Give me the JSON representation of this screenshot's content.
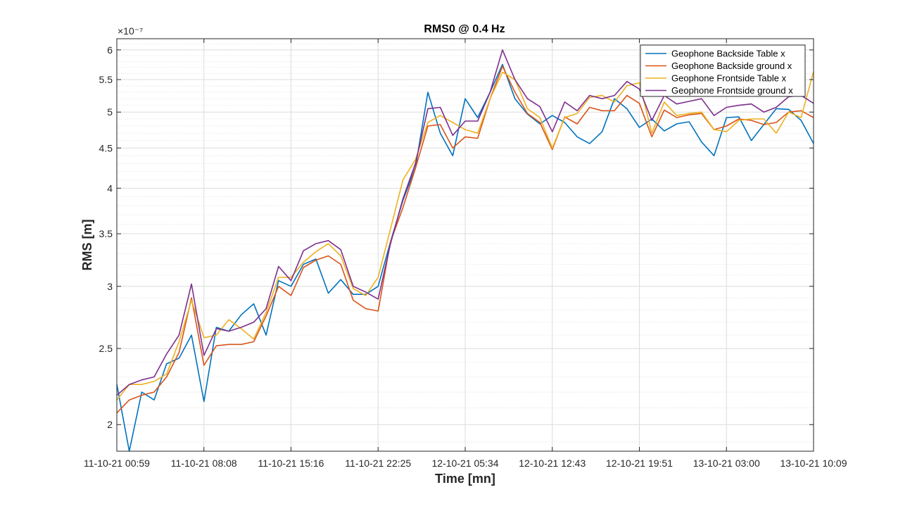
{
  "chart_data": {
    "type": "line",
    "title": "RMS0 @ 0.4 Hz",
    "xlabel": "Time [mn]",
    "ylabel": "RMS [m]",
    "y_exponent_label": "×10⁻⁷",
    "y_scale": "log",
    "ylim": [
      1.85,
      6.2
    ],
    "xlim": [
      0,
      56
    ],
    "grid": true,
    "minor_grid": true,
    "legend_position": "top-right",
    "x_tick_positions": [
      0,
      7,
      14,
      21,
      28,
      35,
      42,
      49,
      56
    ],
    "x_tick_labels": [
      "11-10-21 00:59",
      "11-10-21 08:08",
      "11-10-21 15:16",
      "11-10-21 22:25",
      "12-10-21 05:34",
      "12-10-21 12:43",
      "12-10-21 19:51",
      "13-10-21 03:00",
      "13-10-21 10:09"
    ],
    "y_ticks": [
      2,
      2.5,
      3,
      3.5,
      4,
      4.5,
      5,
      5.5,
      6
    ],
    "y_tick_labels": [
      "2",
      "2.5",
      "3",
      "3.5",
      "4",
      "4.5",
      "5",
      "5.5",
      "6"
    ],
    "y_minor_ticks": [
      1.9,
      2.1,
      2.2,
      2.3,
      2.4,
      2.6,
      2.7,
      2.8,
      2.9,
      3.1,
      3.2,
      3.3,
      3.4,
      3.6,
      3.7,
      3.8,
      3.9,
      4.1,
      4.2,
      4.3,
      4.4,
      4.6,
      4.7,
      4.8,
      4.9,
      5.1,
      5.2,
      5.3,
      5.4,
      5.6,
      5.7,
      5.8,
      5.9,
      6.1
    ],
    "x": [
      0,
      1,
      2,
      3,
      4,
      5,
      6,
      7,
      8,
      9,
      10,
      11,
      12,
      13,
      14,
      15,
      16,
      17,
      18,
      19,
      20,
      21,
      22,
      23,
      24,
      25,
      26,
      27,
      28,
      29,
      30,
      31,
      32,
      33,
      34,
      35,
      36,
      37,
      38,
      39,
      40,
      41,
      42,
      43,
      44,
      45,
      46,
      47,
      48,
      49,
      50,
      51,
      52,
      53,
      54,
      55,
      56
    ],
    "series": [
      {
        "name": "Geophone Backside Table x",
        "color": "#0072BD",
        "values": [
          2.25,
          1.83,
          2.2,
          2.15,
          2.39,
          2.43,
          2.6,
          2.14,
          2.66,
          2.63,
          2.76,
          2.85,
          2.6,
          3.05,
          3.0,
          3.2,
          3.25,
          2.94,
          3.06,
          2.93,
          2.93,
          3.0,
          3.42,
          3.86,
          4.25,
          5.3,
          4.7,
          4.4,
          5.2,
          4.92,
          5.3,
          5.75,
          5.2,
          4.97,
          4.83,
          4.95,
          4.85,
          4.65,
          4.56,
          4.72,
          5.2,
          5.05,
          4.78,
          4.9,
          4.73,
          4.83,
          4.86,
          4.58,
          4.4,
          4.92,
          4.93,
          4.6,
          4.82,
          5.05,
          5.04,
          4.88,
          4.56
        ]
      },
      {
        "name": "Geophone Backside ground x",
        "color": "#D95319",
        "values": [
          2.07,
          2.15,
          2.18,
          2.2,
          2.3,
          2.47,
          2.9,
          2.38,
          2.52,
          2.53,
          2.53,
          2.55,
          2.75,
          3.0,
          2.92,
          3.17,
          3.24,
          3.28,
          3.2,
          2.88,
          2.81,
          2.79,
          3.42,
          3.78,
          4.24,
          4.8,
          4.82,
          4.5,
          4.65,
          4.63,
          5.2,
          5.72,
          5.3,
          4.98,
          4.85,
          4.48,
          4.93,
          4.83,
          5.07,
          5.02,
          5.02,
          5.25,
          5.13,
          4.65,
          5.03,
          4.92,
          4.96,
          4.98,
          4.75,
          4.8,
          4.9,
          4.88,
          4.82,
          4.85,
          5.0,
          5.02,
          4.92
        ]
      },
      {
        "name": "Geophone Frontside Table x",
        "color": "#EDB120",
        "values": [
          2.15,
          2.25,
          2.25,
          2.27,
          2.32,
          2.55,
          2.88,
          2.58,
          2.6,
          2.72,
          2.65,
          2.57,
          2.78,
          3.08,
          3.08,
          3.22,
          3.32,
          3.4,
          3.28,
          2.98,
          2.92,
          3.08,
          3.55,
          4.1,
          4.35,
          4.85,
          4.95,
          4.85,
          4.75,
          4.7,
          5.2,
          5.62,
          5.5,
          5.05,
          4.92,
          4.5,
          4.92,
          4.98,
          5.22,
          5.25,
          5.15,
          5.4,
          5.45,
          4.7,
          5.15,
          4.95,
          4.98,
          5.0,
          4.75,
          4.72,
          4.88,
          4.9,
          4.9,
          4.7,
          5.0,
          4.92,
          5.63
        ]
      },
      {
        "name": "Geophone Frontside ground x",
        "color": "#7E2F8E",
        "values": [
          2.18,
          2.25,
          2.28,
          2.3,
          2.46,
          2.6,
          3.02,
          2.45,
          2.65,
          2.63,
          2.66,
          2.7,
          2.81,
          3.18,
          3.05,
          3.33,
          3.4,
          3.43,
          3.34,
          3.0,
          2.95,
          2.89,
          3.4,
          3.88,
          4.3,
          5.05,
          5.07,
          4.67,
          4.87,
          4.87,
          5.3,
          6.0,
          5.5,
          5.2,
          5.08,
          4.72,
          5.15,
          5.02,
          5.25,
          5.2,
          5.25,
          5.47,
          5.35,
          4.88,
          5.25,
          5.12,
          5.16,
          5.2,
          4.95,
          5.07,
          5.1,
          5.12,
          5.0,
          5.07,
          5.23,
          5.25,
          5.13
        ]
      }
    ]
  }
}
